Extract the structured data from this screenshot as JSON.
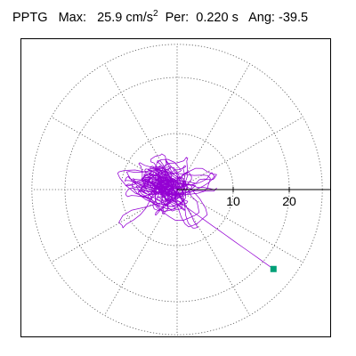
{
  "header": {
    "record": "PPTG",
    "max_label": "Max:",
    "max_value": "25.9",
    "max_unit": "cm/s",
    "max_unit_exp": "2",
    "period_label": "Per:",
    "period_value": "0.220 s",
    "angle_label": "Ang:",
    "angle_value": "-39.5"
  },
  "chart_data": {
    "type": "polar-hodogram",
    "radial_ticks": [
      "10",
      "20"
    ],
    "radial_tick_values": [
      10,
      20
    ],
    "r_max": 25.9,
    "grid_rings": [
      10,
      20,
      25.9
    ],
    "spokes_deg": [
      0,
      30,
      60,
      90,
      120,
      150,
      180,
      210,
      240,
      270,
      300,
      330
    ],
    "peak": {
      "value": 25.9,
      "angle_deg": -39.5
    },
    "trace_color": "#9400d3",
    "peak_marker_color": "#00a077",
    "frame_color": "#000000"
  }
}
